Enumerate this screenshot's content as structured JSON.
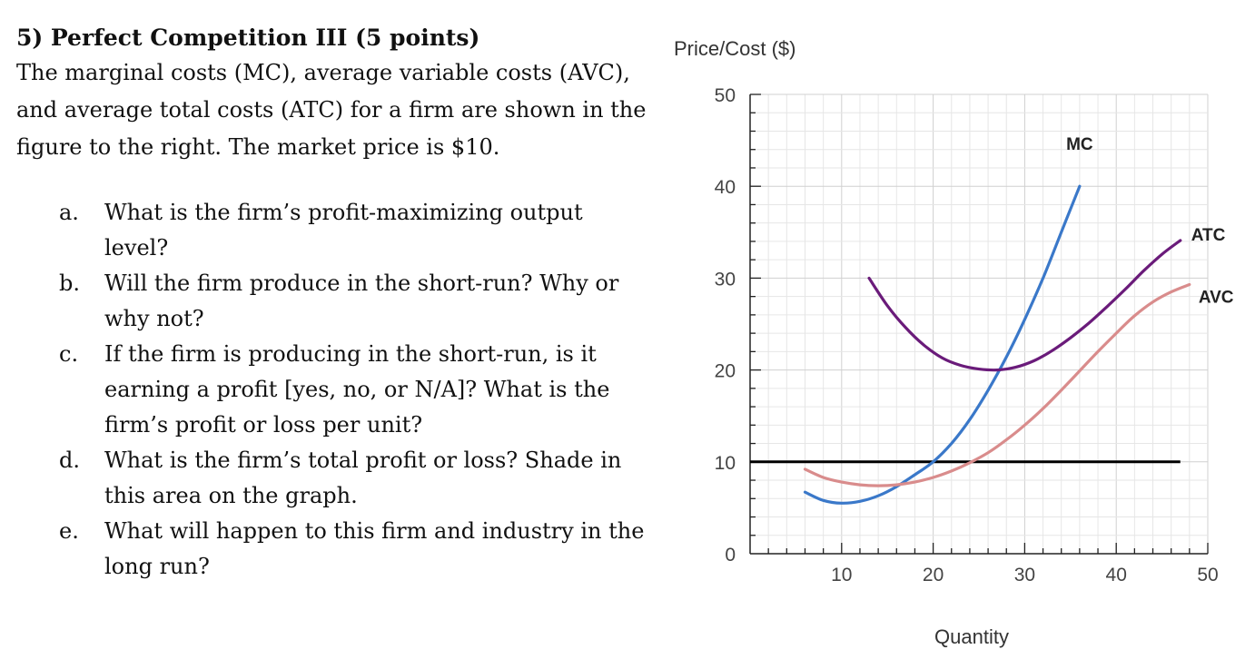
{
  "problem": {
    "title": "5) Perfect Competition III (5 points)",
    "intro": "The marginal costs (MC), average variable costs (AVC), and average total costs (ATC) for a firm are shown in the figure to the right. The market price is $10.",
    "questions": [
      {
        "letter": "a.",
        "text": "What is the firm’s profit-maximizing output level?"
      },
      {
        "letter": "b.",
        "text": "Will the firm produce in the short-run? Why or why not?"
      },
      {
        "letter": "c.",
        "text": "If the firm is producing in the short-run, is it earning a profit [yes, no, or N/A]? What is the firm’s profit or loss per unit?"
      },
      {
        "letter": "d.",
        "text": "What is the firm’s total profit or loss? Shade in this area on the graph."
      },
      {
        "letter": "e.",
        "text": "What will happen to this firm and industry in the long run?"
      }
    ]
  },
  "chart_data": {
    "type": "line",
    "title": "",
    "xlabel": "Quantity",
    "ylabel": "Price/Cost ($)",
    "xlim": [
      0,
      50
    ],
    "ylim": [
      0,
      50
    ],
    "xticks": [
      0,
      10,
      20,
      30,
      40,
      50
    ],
    "yticks": [
      0,
      10,
      20,
      30,
      40,
      50
    ],
    "grid": true,
    "price_line": {
      "y": 10,
      "x": [
        0,
        47
      ],
      "color": "#000000"
    },
    "series": [
      {
        "name": "MC",
        "color": "#3a78c9",
        "points": [
          [
            6,
            6.7
          ],
          [
            8,
            5.8
          ],
          [
            10,
            5.5
          ],
          [
            12,
            5.7
          ],
          [
            14,
            6.3
          ],
          [
            16,
            7.3
          ],
          [
            18,
            8.6
          ],
          [
            20,
            10
          ],
          [
            22,
            12
          ],
          [
            24,
            14.6
          ],
          [
            26,
            17.8
          ],
          [
            28,
            21.4
          ],
          [
            30,
            25.5
          ],
          [
            32,
            30
          ],
          [
            34,
            35
          ],
          [
            36,
            40
          ]
        ]
      },
      {
        "name": "ATC",
        "color": "#6a1b7a",
        "points": [
          [
            13,
            30
          ],
          [
            15,
            27
          ],
          [
            17,
            24.6
          ],
          [
            19,
            22.7
          ],
          [
            21,
            21.3
          ],
          [
            23,
            20.5
          ],
          [
            25,
            20.1
          ],
          [
            27,
            20.0
          ],
          [
            29,
            20.3
          ],
          [
            31,
            21
          ],
          [
            33,
            22.1
          ],
          [
            35,
            23.5
          ],
          [
            37,
            25.1
          ],
          [
            39,
            26.9
          ],
          [
            41,
            28.8
          ],
          [
            43,
            30.8
          ],
          [
            45,
            32.6
          ],
          [
            47,
            34.1
          ]
        ]
      },
      {
        "name": "AVC",
        "color": "#d98c8c",
        "points": [
          [
            6,
            9.2
          ],
          [
            8,
            8.3
          ],
          [
            10,
            7.8
          ],
          [
            12,
            7.5
          ],
          [
            14,
            7.4
          ],
          [
            16,
            7.5
          ],
          [
            18,
            7.8
          ],
          [
            20,
            8.3
          ],
          [
            22,
            9
          ],
          [
            24,
            9.9
          ],
          [
            26,
            11
          ],
          [
            28,
            12.4
          ],
          [
            30,
            14
          ],
          [
            32,
            15.8
          ],
          [
            34,
            17.8
          ],
          [
            36,
            19.9
          ],
          [
            38,
            22
          ],
          [
            40,
            24
          ],
          [
            42,
            25.9
          ],
          [
            44,
            27.4
          ],
          [
            46,
            28.5
          ],
          [
            48,
            29.3
          ]
        ]
      }
    ]
  }
}
